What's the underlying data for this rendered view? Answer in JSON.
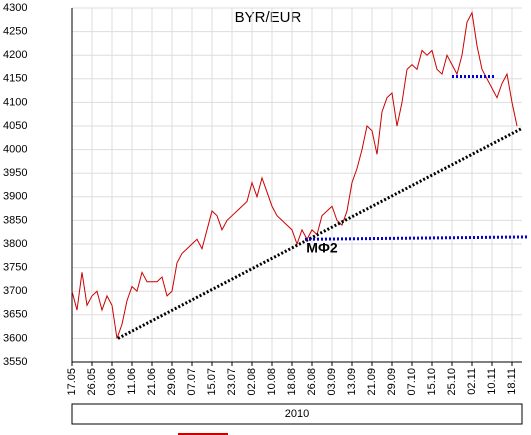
{
  "chart_data": {
    "type": "line",
    "title": "BYR/EUR",
    "categories": [
      "17.05",
      null,
      null,
      null,
      "26.05",
      null,
      null,
      null,
      "03.06",
      null,
      null,
      null,
      "11.06",
      null,
      null,
      null,
      "21.06",
      null,
      null,
      null,
      "29.06",
      null,
      null,
      null,
      "07.07",
      null,
      null,
      null,
      "15.07",
      null,
      null,
      null,
      "23.07",
      null,
      null,
      null,
      "02.08",
      null,
      null,
      null,
      "10.08",
      null,
      null,
      null,
      "18.08",
      null,
      null,
      null,
      "26.08",
      null,
      null,
      null,
      "03.09",
      null,
      null,
      null,
      "13.09",
      null,
      null,
      null,
      "21.09",
      null,
      null,
      null,
      "29.09",
      null,
      null,
      null,
      "07.10",
      null,
      null,
      null,
      "15.10",
      null,
      null,
      null,
      "25.10",
      null,
      null,
      null,
      "02.11",
      null,
      null,
      null,
      "10.11",
      null,
      null,
      null,
      "18.11",
      null
    ],
    "series": [
      {
        "color": "#cc0000",
        "values": [
          3700,
          3660,
          3740,
          3670,
          3690,
          3700,
          3660,
          3690,
          3670,
          3600,
          3630,
          3680,
          3710,
          3700,
          3740,
          3720,
          3720,
          3720,
          3730,
          3690,
          3700,
          3760,
          3780,
          3790,
          3800,
          3810,
          3790,
          3830,
          3870,
          3860,
          3830,
          3850,
          3860,
          3870,
          3880,
          3890,
          3930,
          3900,
          3940,
          3910,
          3880,
          3860,
          3850,
          3840,
          3830,
          3800,
          3830,
          3810,
          3830,
          3820,
          3860,
          3870,
          3880,
          3850,
          3840,
          3870,
          3930,
          3960,
          4000,
          4050,
          4040,
          3990,
          4080,
          4110,
          4120,
          4050,
          4100,
          4170,
          4180,
          4170,
          4210,
          4200,
          4210,
          4170,
          4160,
          4200,
          4180,
          4160,
          4200,
          4270,
          4290,
          4220,
          4170,
          4150,
          4130,
          4110,
          4140,
          4160,
          4100,
          4050
        ]
      }
    ],
    "ylim": [
      3550,
      4300
    ],
    "yticks": [
      3550,
      3600,
      3650,
      3700,
      3750,
      3800,
      3850,
      3900,
      3950,
      4000,
      4050,
      4100,
      4150,
      4200,
      4250,
      4300
    ],
    "grid": true,
    "x_group_label": "2010",
    "trendlines": [
      {
        "color": "#000000",
        "points": [
          [
            9.2,
            3600
          ],
          [
            90,
            4045
          ]
        ]
      },
      {
        "color": "#0000cc",
        "points": [
          [
            46.6,
            3810
          ],
          [
            91.2,
            3815
          ]
        ]
      },
      {
        "color": "#0000cc",
        "points": [
          [
            76,
            4155
          ],
          [
            84.6,
            4155
          ]
        ]
      }
    ],
    "annotations": [
      {
        "text": "МФ2",
        "color": "#0000cc",
        "at": [
          50,
          3790
        ]
      }
    ]
  }
}
